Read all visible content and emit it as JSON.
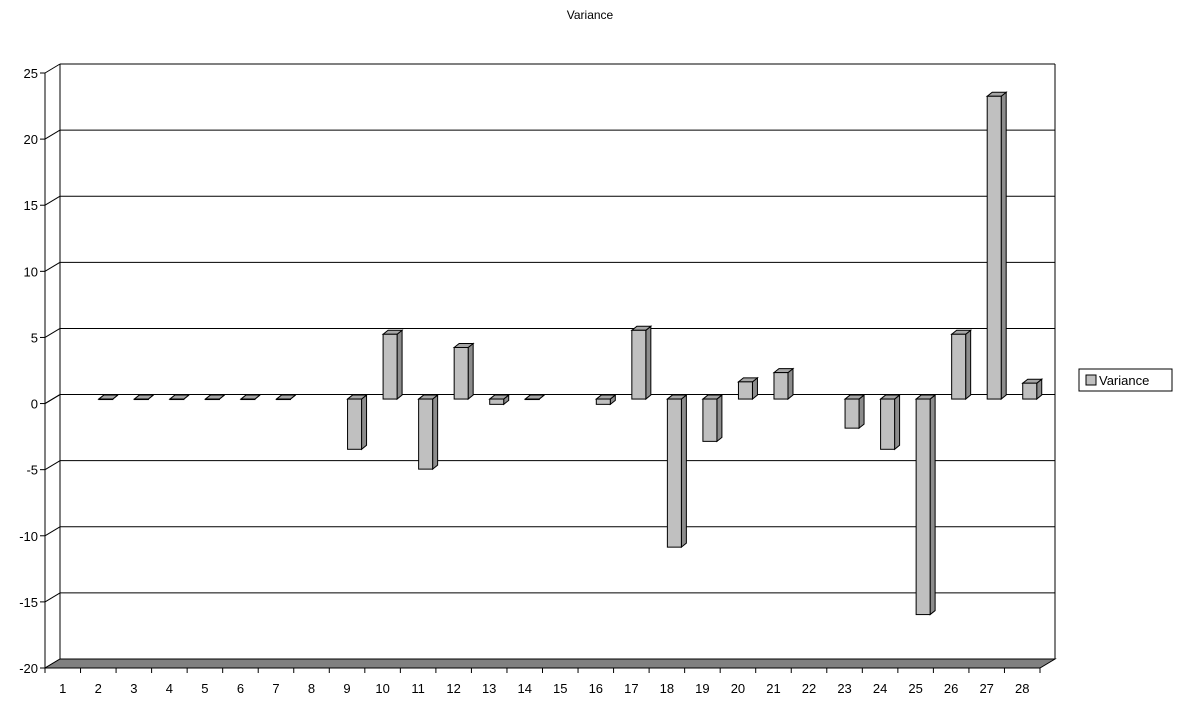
{
  "chart_data": {
    "type": "bar",
    "title": "Variance",
    "xlabel": "",
    "ylabel": "",
    "categories": [
      "1",
      "2",
      "3",
      "4",
      "5",
      "6",
      "7",
      "8",
      "9",
      "10",
      "11",
      "12",
      "13",
      "14",
      "15",
      "16",
      "17",
      "18",
      "19",
      "20",
      "21",
      "22",
      "23",
      "24",
      "25",
      "26",
      "27",
      "28"
    ],
    "series": [
      {
        "name": "Variance",
        "values": [
          null,
          0,
          0,
          0,
          0,
          0,
          0,
          null,
          -3.8,
          4.9,
          -5.3,
          3.9,
          -0.4,
          0,
          null,
          -0.4,
          5.2,
          -11.2,
          -3.2,
          1.3,
          2.0,
          null,
          -2.2,
          -3.8,
          -16.3,
          4.9,
          22.9,
          1.2
        ]
      }
    ],
    "ylim": [
      -20,
      25
    ],
    "yticks": [
      -20,
      -15,
      -10,
      -5,
      0,
      5,
      10,
      15,
      20,
      25
    ],
    "grid": true,
    "legend_position": "right",
    "style": "3d-column"
  },
  "colors": {
    "bar_front": "#c0c0c0",
    "bar_side": "#8c8c8c",
    "bar_top": "#a6a6a6",
    "floor": "#808080",
    "grid": "#000000"
  }
}
